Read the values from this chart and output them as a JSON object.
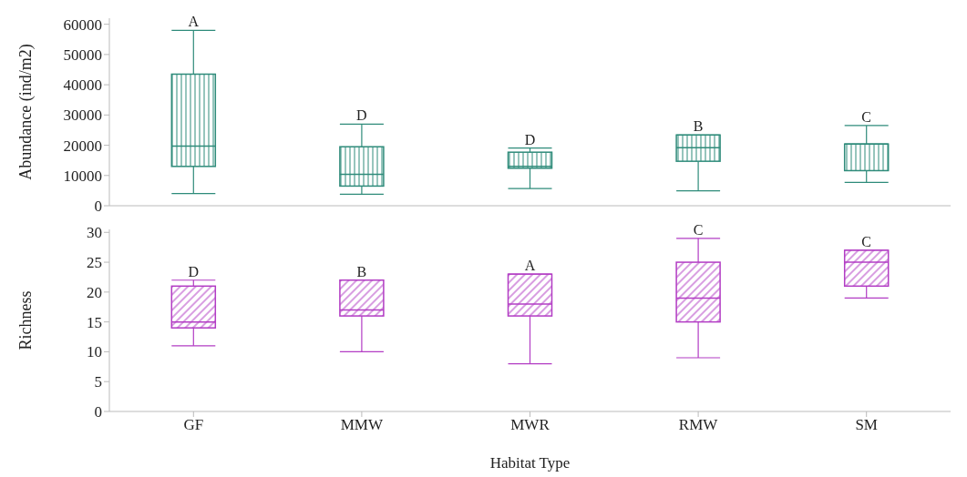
{
  "chart_data": [
    {
      "type": "box",
      "categories": [
        "GF",
        "MMW",
        "MWR",
        "RMW",
        "SM"
      ],
      "ylabel": "Abundance (ind/m2)",
      "ylim": [
        0,
        62000
      ],
      "yticks": [
        0,
        10000,
        20000,
        30000,
        40000,
        50000,
        60000
      ],
      "tick_labels": "y",
      "grid": false,
      "legend": false,
      "series": [
        {
          "color": "#2e8b7a",
          "boxes": [
            {
              "low": 4000,
              "q1": 13000,
              "median": 19700,
              "q3": 43500,
              "high": 58000
            },
            {
              "low": 3800,
              "q1": 6500,
              "median": 10400,
              "q3": 19500,
              "high": 27000
            },
            {
              "low": 5700,
              "q1": 12400,
              "median": 13000,
              "q3": 17700,
              "high": 19100
            },
            {
              "low": 4900,
              "q1": 14700,
              "median": 19200,
              "q3": 23400,
              "high": 23400
            },
            {
              "low": 7700,
              "q1": 11600,
              "median": 20400,
              "q3": 20400,
              "high": 26500
            }
          ]
        }
      ],
      "annotations": [
        {
          "text": "A",
          "x": "GF",
          "y": 58000
        },
        {
          "text": "D",
          "x": "MMW",
          "y": 27000
        },
        {
          "text": "D",
          "x": "MWR",
          "y": 19100
        },
        {
          "text": "B",
          "x": "RMW",
          "y": 23400
        },
        {
          "text": "C",
          "x": "SM",
          "y": 26500
        }
      ]
    },
    {
      "type": "box",
      "categories": [
        "GF",
        "MMW",
        "MWR",
        "RMW",
        "SM"
      ],
      "xlabel": "Habitat Type",
      "ylabel": "Richness",
      "ylim": [
        0,
        30.5
      ],
      "yticks": [
        0,
        5,
        10,
        15,
        20,
        25,
        30
      ],
      "grid": false,
      "legend": false,
      "series": [
        {
          "color": "#b23cc4",
          "boxes": [
            {
              "low": 11,
              "q1": 14,
              "median": 15,
              "q3": 21,
              "high": 22
            },
            {
              "low": 10,
              "q1": 16,
              "median": 17,
              "q3": 22,
              "high": 22
            },
            {
              "low": 8,
              "q1": 16,
              "median": 18,
              "q3": 23,
              "high": 23
            },
            {
              "low": 9,
              "q1": 15,
              "median": 19,
              "q3": 25,
              "high": 29
            },
            {
              "low": 19,
              "q1": 21,
              "median": 25,
              "q3": 27,
              "high": 27
            }
          ]
        }
      ],
      "annotations": [
        {
          "text": "D",
          "x": "GF",
          "y": 22
        },
        {
          "text": "B",
          "x": "MMW",
          "y": 22
        },
        {
          "text": "A",
          "x": "MWR",
          "y": 23
        },
        {
          "text": "C",
          "x": "RMW",
          "y": 29
        },
        {
          "text": "C",
          "x": "SM",
          "y": 27
        }
      ]
    }
  ]
}
